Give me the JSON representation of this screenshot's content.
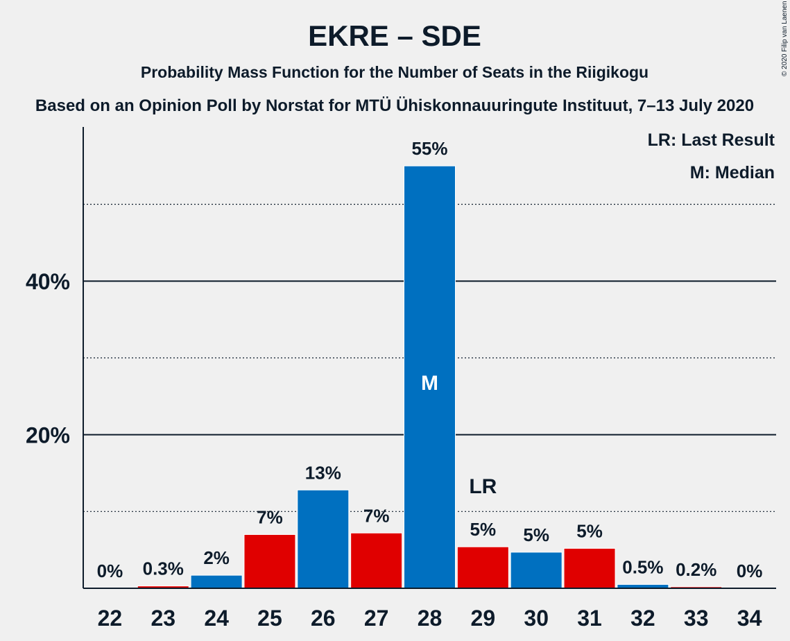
{
  "header": {
    "title": "EKRE – SDE",
    "subtitle": "Probability Mass Function for the Number of Seats in the Riigikogu",
    "source": "Based on an Opinion Poll by Norstat for MTÜ Ühiskonnauuringute Instituut, 7–13 July 2020",
    "copyright": "© 2020 Filip van Laenen"
  },
  "legend": {
    "last_result": "LR: Last Result",
    "median": "M: Median"
  },
  "colors": {
    "blue": "#0070c0",
    "red": "#e00000",
    "text": "#0d1b2a",
    "background": "#f0f0f0"
  },
  "chart_data": {
    "type": "bar",
    "categories": [
      "22",
      "23",
      "24",
      "25",
      "26",
      "27",
      "28",
      "29",
      "30",
      "31",
      "32",
      "33",
      "34"
    ],
    "values": [
      0,
      0.3,
      1.7,
      7,
      12.8,
      7.2,
      55,
      5.4,
      4.7,
      5.2,
      0.5,
      0.2,
      0
    ],
    "data_labels": [
      "0%",
      "0.3%",
      "2%",
      "7%",
      "13%",
      "7%",
      "55%",
      "5%",
      "5%",
      "5%",
      "0.5%",
      "0.2%",
      "0%"
    ],
    "bar_colors": [
      "blue",
      "red",
      "blue",
      "red",
      "blue",
      "red",
      "blue",
      "red",
      "blue",
      "red",
      "blue",
      "red",
      "blue"
    ],
    "ylim": [
      0,
      60
    ],
    "yticks": [
      20,
      40
    ],
    "ytick_labels": [
      "20%",
      "40%"
    ],
    "minor_gridlines": [
      10,
      30,
      50
    ],
    "median_category": "28",
    "median_label": "M",
    "last_result_category": "29",
    "last_result_label": "LR",
    "legend_position": "top-right",
    "grid": true
  }
}
